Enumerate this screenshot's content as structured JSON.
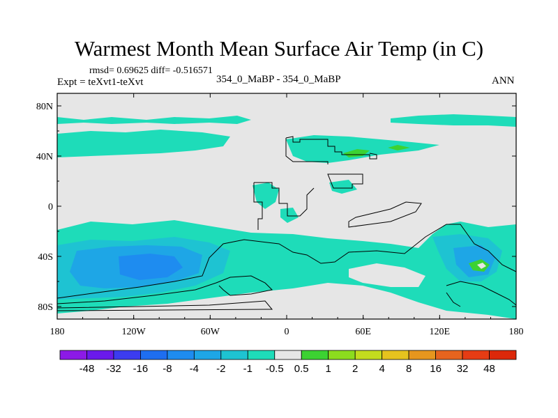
{
  "title": "Warmest Month Mean Surface Air Temp (in C)",
  "stats": "rmsd= 0.69625 diff= -0.516571",
  "expt": "Expt = teXvt1-teXvt",
  "center_label": "354_0_MaBP - 354_0_MaBP",
  "season": "ANN",
  "chart_data": {
    "type": "heatmap",
    "title": "Warmest Month Mean Surface Air Temp (in C)",
    "xlabel": "",
    "ylabel": "",
    "xlim": [
      -180,
      180
    ],
    "ylim": [
      -90,
      90
    ],
    "x_ticks": [
      "180",
      "120W",
      "60W",
      "0",
      "60E",
      "120E",
      "180"
    ],
    "y_ticks": [
      "80N",
      "40N",
      "0",
      "40S",
      "80S"
    ],
    "colorbar": {
      "levels": [
        "-48",
        "-32",
        "-16",
        "-8",
        "-4",
        "-2",
        "-1",
        "-0.5",
        "0.5",
        "1",
        "2",
        "4",
        "8",
        "16",
        "32",
        "48"
      ],
      "colors": [
        "#8c1ae6",
        "#6a1aeb",
        "#3c3cf0",
        "#1e6ef0",
        "#1e8cf0",
        "#1ea6e6",
        "#1ec3d2",
        "#1edcb9",
        "#e6e6e6",
        "#3cd232",
        "#8cdc1e",
        "#c3dc1e",
        "#e6c31e",
        "#e6961e",
        "#e6641e",
        "#e63c14",
        "#dc280a"
      ]
    },
    "regions": [
      {
        "lon_min": -180,
        "lon_max": 180,
        "lat_min": -90,
        "lat_max": 90,
        "level": "-0.5 to 0.5"
      },
      {
        "lon_min": -150,
        "lon_max": -100,
        "lat_min": -70,
        "lat_max": -30,
        "level": "-4 to -2"
      },
      {
        "lon_min": 150,
        "lon_max": 160,
        "lat_min": -50,
        "lat_max": -42,
        "level": "1 to 2"
      },
      {
        "lon_min": 40,
        "lon_max": 60,
        "lat_min": 38,
        "lat_max": 43,
        "level": "0.5 to 1"
      }
    ]
  }
}
